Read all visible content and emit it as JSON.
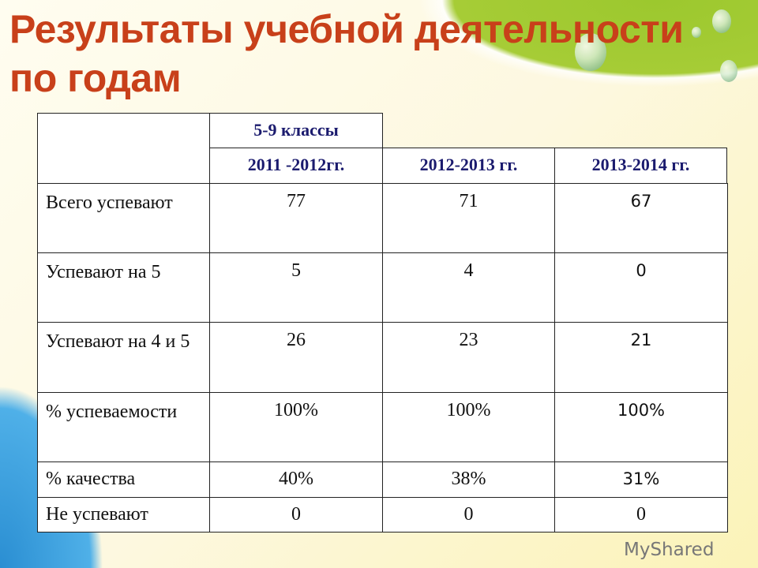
{
  "title": "Результаты учебной деятельности по годам",
  "table": {
    "group_header": "5-9 классы",
    "years": [
      "2011 -2012гг.",
      "2012-2013 гг.",
      "2013-2014 гг."
    ],
    "rows": [
      {
        "label": "Всего успевают",
        "values": [
          "77",
          "71",
          "67"
        ]
      },
      {
        "label": "Успевают на 5",
        "values": [
          "5",
          "4",
          "0"
        ]
      },
      {
        "label": "Успевают на 4 и 5",
        "values": [
          "26",
          "23",
          "21"
        ]
      },
      {
        "label": "% успеваемости",
        "values": [
          "100%",
          "100%",
          "100%"
        ]
      },
      {
        "label": "% качества",
        "values": [
          "40%",
          "38%",
          "31%"
        ]
      },
      {
        "label": "Не успевают",
        "values": [
          "0",
          "0",
          "0"
        ]
      }
    ]
  },
  "watermark": "MyShared",
  "colors": {
    "title": "#c8401a",
    "header_text": "#1b1b6e"
  }
}
